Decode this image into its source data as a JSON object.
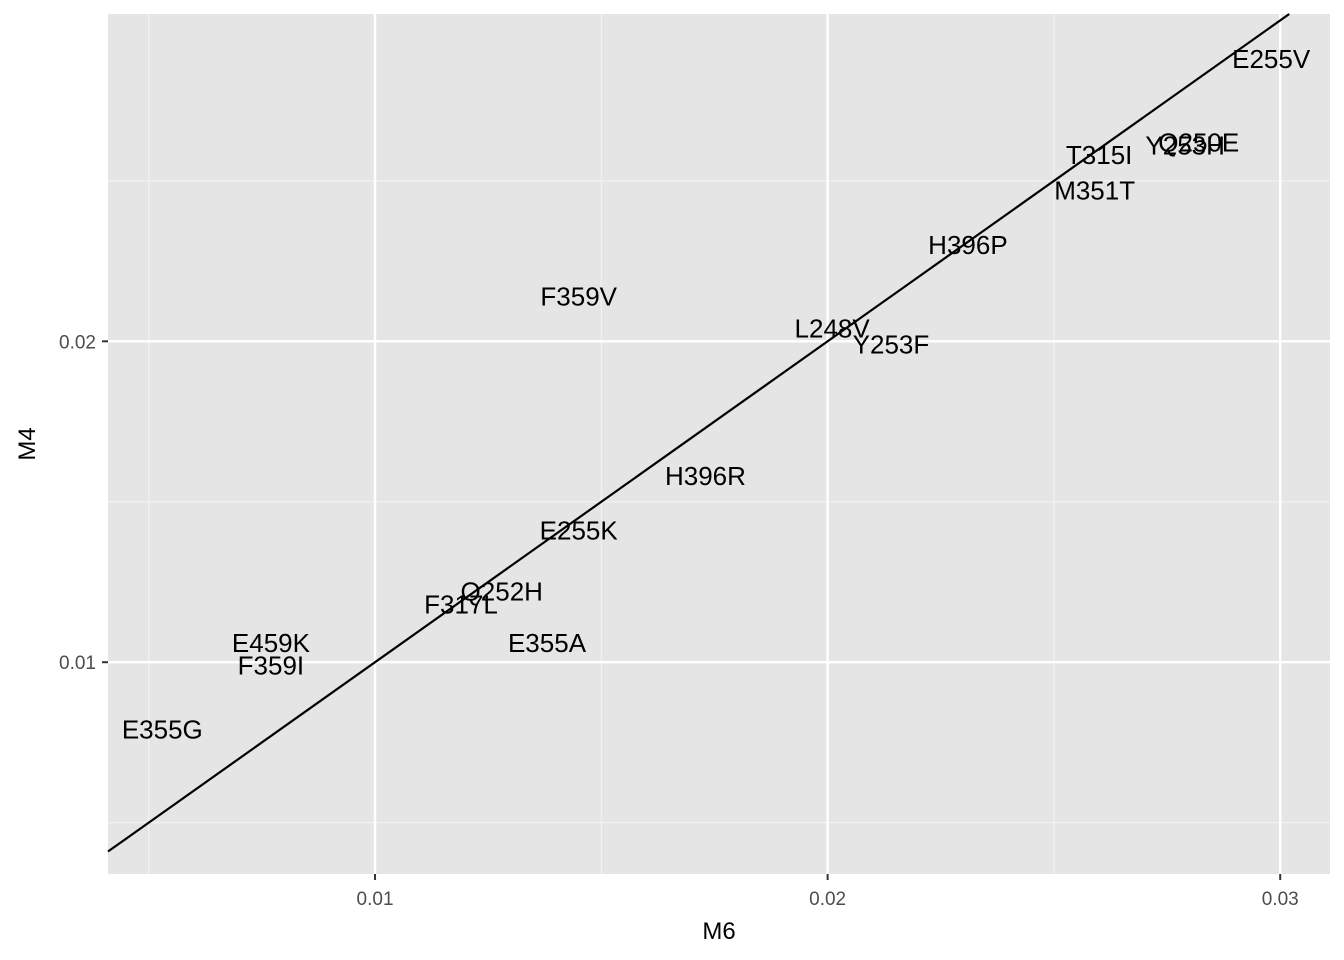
{
  "chart_data": {
    "type": "scatter",
    "title": "",
    "xlabel": "M6",
    "ylabel": "M4",
    "xlim": [
      0.0041,
      0.0311
    ],
    "ylim": [
      0.0034,
      0.0302
    ],
    "x_ticks": [
      {
        "value": 0.01,
        "label": "0.01"
      },
      {
        "value": 0.02,
        "label": "0.02"
      },
      {
        "value": 0.03,
        "label": "0.03"
      }
    ],
    "y_ticks": [
      {
        "value": 0.01,
        "label": "0.01"
      },
      {
        "value": 0.02,
        "label": "0.02"
      }
    ],
    "x_minor_grid": [
      0.005,
      0.015,
      0.025
    ],
    "y_minor_grid": [
      0.005,
      0.015,
      0.025
    ],
    "grid": true,
    "reference_line": {
      "slope": 1,
      "intercept": 0
    },
    "points": [
      {
        "label": "E255V",
        "x": 0.0298,
        "y": 0.0288
      },
      {
        "label": "Q250E",
        "x": 0.0282,
        "y": 0.0262
      },
      {
        "label": "Y253H",
        "x": 0.0279,
        "y": 0.0261
      },
      {
        "label": "T315I",
        "x": 0.026,
        "y": 0.0258
      },
      {
        "label": "M351T",
        "x": 0.0259,
        "y": 0.0247
      },
      {
        "label": "H396P",
        "x": 0.0231,
        "y": 0.023
      },
      {
        "label": "F359V",
        "x": 0.0145,
        "y": 0.0214
      },
      {
        "label": "L248V",
        "x": 0.0201,
        "y": 0.0204
      },
      {
        "label": "Y253F",
        "x": 0.0214,
        "y": 0.0199
      },
      {
        "label": "H396R",
        "x": 0.0173,
        "y": 0.0158
      },
      {
        "label": "E255K",
        "x": 0.0145,
        "y": 0.0141
      },
      {
        "label": "Q252H",
        "x": 0.0128,
        "y": 0.0122
      },
      {
        "label": "F317L",
        "x": 0.0119,
        "y": 0.0118
      },
      {
        "label": "E355A",
        "x": 0.0138,
        "y": 0.0106
      },
      {
        "label": "E459K",
        "x": 0.0077,
        "y": 0.0106
      },
      {
        "label": "F359I",
        "x": 0.0077,
        "y": 0.0099
      },
      {
        "label": "E355G",
        "x": 0.0053,
        "y": 0.0079
      }
    ]
  }
}
